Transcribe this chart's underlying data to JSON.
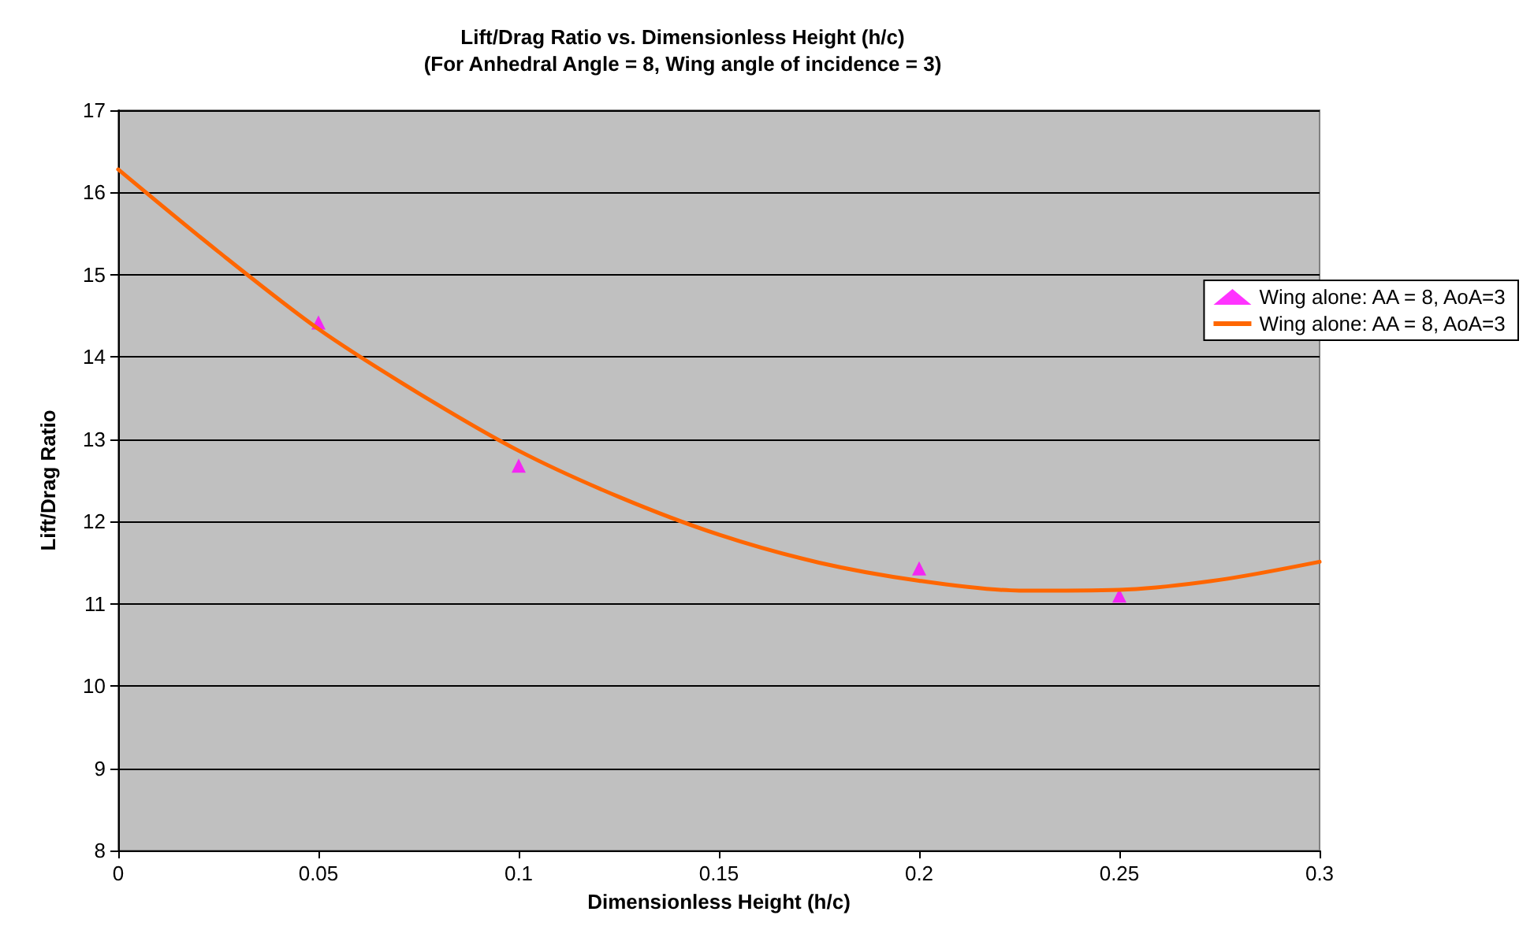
{
  "chart_data": {
    "type": "scatter",
    "title": "Lift/Drag Ratio vs. Dimensionless Height (h/c)",
    "subtitle": "(For Anhedral Angle = 8, Wing angle of incidence = 3)",
    "xlabel": "Dimensionless Height (h/c)",
    "ylabel": "Lift/Drag Ratio",
    "x": [
      0.05,
      0.1,
      0.2,
      0.25
    ],
    "series": [
      {
        "name": "Wing alone: AA = 8, AoA=3",
        "color": "#ff00ff",
        "marker": "triangle",
        "values": [
          14.42,
          12.68,
          11.43,
          11.1
        ]
      },
      {
        "name": "Wing alone: AA = 8, AoA=3",
        "color": "#ff6600",
        "type": "line",
        "marker": "none",
        "line_style": "solid",
        "x": [
          0,
          0.025,
          0.05,
          0.075,
          0.1,
          0.125,
          0.15,
          0.175,
          0.2,
          0.225,
          0.25,
          0.275,
          0.3
        ],
        "values": [
          16.28,
          15.28,
          14.34,
          13.56,
          12.86,
          12.3,
          11.84,
          11.5,
          11.28,
          11.16,
          11.17,
          11.29,
          11.51
        ]
      }
    ],
    "xlim": [
      0,
      0.3
    ],
    "xticks": [
      0,
      0.05,
      0.1,
      0.15,
      0.2,
      0.25,
      0.3
    ],
    "ylim": [
      8,
      17
    ],
    "yticks": [
      8,
      9,
      10,
      11,
      12,
      13,
      14,
      15,
      16,
      17
    ],
    "grid": "y",
    "legend": "right"
  }
}
